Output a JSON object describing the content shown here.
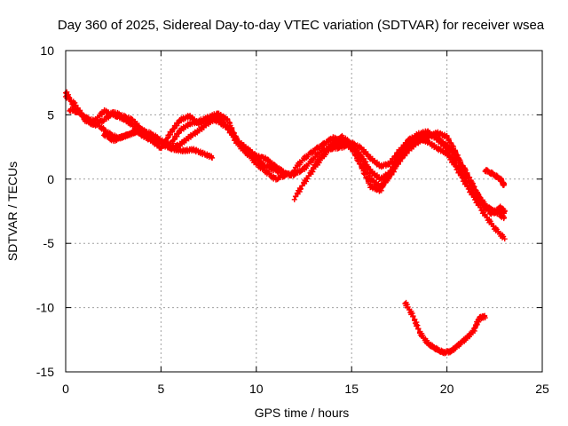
{
  "chart_data": {
    "type": "scatter",
    "title": "Day 360 of 2025, Sidereal Day-to-day VTEC variation (SDTVAR) for receiver wsea",
    "xlabel": "GPS time / hours",
    "ylabel": "SDTVAR / TECUs",
    "xlim": [
      0,
      25
    ],
    "ylim": [
      -15,
      10
    ],
    "xticks": [
      0,
      5,
      10,
      15,
      20,
      25
    ],
    "yticks": [
      -15,
      -10,
      -5,
      0,
      5,
      10
    ],
    "grid": true,
    "marker": "+",
    "color": "#ff0000",
    "series": [
      {
        "name": "track-1",
        "x": [
          0.0,
          0.5,
          1.0,
          1.5,
          2.0,
          2.5,
          3.0,
          3.5,
          4.0,
          4.5,
          5.0,
          5.5,
          6.0,
          6.5,
          7.0,
          7.5,
          8.0,
          8.5,
          9.0,
          9.5,
          10.0,
          10.5,
          11.0,
          11.5,
          12.0
        ],
        "y": [
          6.5,
          5.8,
          4.6,
          4.2,
          4.6,
          5.2,
          4.9,
          4.6,
          3.8,
          3.1,
          2.9,
          2.7,
          3.8,
          4.3,
          4.5,
          4.8,
          4.5,
          4.0,
          2.8,
          2.0,
          1.5,
          1.0,
          0.7,
          0.4,
          0.3
        ]
      },
      {
        "name": "track-2",
        "x": [
          0.0,
          0.5,
          1.0,
          1.5,
          2.0,
          2.5,
          3.0,
          3.5,
          4.0,
          4.5,
          5.0,
          5.5,
          6.0,
          6.5,
          7.0,
          7.5,
          8.0,
          8.5,
          9.0,
          9.5,
          10.0,
          10.5,
          11.0,
          11.5,
          12.0
        ],
        "y": [
          6.8,
          5.5,
          4.8,
          4.5,
          5.3,
          5.0,
          4.7,
          4.2,
          3.4,
          3.0,
          2.4,
          3.6,
          4.6,
          4.9,
          4.3,
          4.8,
          5.1,
          4.6,
          3.0,
          2.1,
          1.2,
          0.6,
          0.0,
          0.3,
          0.5
        ]
      },
      {
        "name": "track-3",
        "x": [
          0.2,
          0.7,
          1.2,
          1.7,
          2.2,
          2.7,
          3.2,
          3.7,
          4.2,
          4.7,
          5.2,
          5.7,
          6.2,
          6.7,
          7.2,
          7.7
        ],
        "y": [
          5.4,
          5.2,
          4.5,
          4.2,
          3.6,
          3.2,
          3.4,
          3.7,
          3.4,
          3.1,
          2.6,
          2.3,
          2.2,
          2.3,
          2.0,
          1.7
        ]
      },
      {
        "name": "track-4",
        "x": [
          2.0,
          2.5,
          3.0,
          3.5,
          4.0,
          4.5,
          5.0,
          5.5,
          6.0,
          6.5,
          7.0,
          7.5,
          8.0,
          8.5,
          9.0,
          9.5,
          10.0,
          10.5,
          11.0,
          11.5
        ],
        "y": [
          3.5,
          3.0,
          3.3,
          3.6,
          3.8,
          3.5,
          3.0,
          2.4,
          2.7,
          3.3,
          3.8,
          4.4,
          4.8,
          4.0,
          3.0,
          2.4,
          1.8,
          1.6,
          1.0,
          0.5
        ]
      },
      {
        "name": "track-5",
        "x": [
          12.0,
          12.5,
          13.0,
          13.5,
          14.0,
          14.5,
          15.0,
          15.5,
          16.0,
          16.5,
          17.0,
          17.5,
          18.0,
          18.5,
          19.0,
          19.5,
          20.0,
          20.5,
          21.0,
          21.5,
          22.0,
          22.5,
          23.0
        ],
        "y": [
          0.8,
          1.6,
          2.2,
          2.7,
          3.2,
          3.0,
          2.6,
          1.8,
          0.6,
          0.0,
          0.5,
          1.6,
          2.7,
          3.2,
          3.5,
          3.2,
          2.6,
          1.8,
          0.6,
          -0.9,
          -2.0,
          -2.6,
          -2.4
        ]
      },
      {
        "name": "track-6",
        "x": [
          12.0,
          12.5,
          13.0,
          13.5,
          14.0,
          14.5,
          15.0,
          15.5,
          16.0,
          16.5,
          17.0,
          17.5,
          18.0,
          18.5,
          19.0,
          19.5,
          20.0,
          20.5,
          21.0,
          21.5,
          22.0,
          22.5,
          23.0
        ],
        "y": [
          -1.5,
          -0.3,
          0.8,
          1.8,
          2.6,
          2.8,
          2.4,
          1.0,
          -0.6,
          -0.9,
          0.4,
          1.9,
          3.1,
          3.2,
          2.9,
          2.4,
          2.0,
          0.9,
          -0.4,
          -1.6,
          -2.8,
          -3.8,
          -4.6
        ]
      },
      {
        "name": "track-7",
        "x": [
          13.0,
          13.5,
          14.0,
          14.5,
          15.0,
          15.5,
          16.0,
          16.5,
          17.0,
          17.5,
          18.0,
          18.5,
          19.0,
          19.5,
          20.0,
          20.5,
          21.0,
          21.5,
          22.0,
          22.5,
          23.0
        ],
        "y": [
          1.0,
          1.8,
          2.8,
          3.3,
          2.7,
          1.6,
          0.0,
          -0.6,
          0.2,
          1.4,
          2.3,
          2.9,
          3.3,
          3.6,
          3.3,
          2.0,
          0.2,
          -1.4,
          -2.1,
          -2.5,
          -3.0
        ]
      },
      {
        "name": "track-8",
        "x": [
          12.0,
          12.5,
          13.0,
          13.5,
          14.0,
          14.5,
          15.0,
          15.5,
          16.0,
          16.5,
          17.0,
          17.5,
          18.0,
          18.5,
          19.0,
          19.5,
          20.0,
          20.5,
          21.0
        ],
        "y": [
          0.4,
          0.8,
          1.6,
          2.3,
          2.4,
          2.5,
          2.8,
          2.4,
          1.6,
          1.0,
          1.2,
          2.2,
          3.0,
          3.5,
          3.7,
          3.1,
          2.4,
          1.2,
          0.0
        ]
      },
      {
        "name": "track-9",
        "x": [
          21.3,
          21.8,
          22.3,
          22.8,
          23.0
        ],
        "y": [
          -0.3,
          -1.8,
          -2.7,
          -2.2,
          -2.6
        ]
      },
      {
        "name": "track-10",
        "x": [
          22.0,
          22.4,
          22.8,
          23.0
        ],
        "y": [
          0.7,
          0.4,
          0.0,
          -0.5
        ]
      },
      {
        "name": "track-11",
        "x": [
          17.8,
          18.2,
          18.6,
          19.0,
          19.4,
          19.8,
          20.2,
          20.6,
          21.0,
          21.4,
          21.7,
          22.0
        ],
        "y": [
          -9.6,
          -10.6,
          -12.0,
          -12.8,
          -13.2,
          -13.5,
          -13.4,
          -12.9,
          -12.4,
          -11.8,
          -10.8,
          -10.7
        ]
      }
    ]
  }
}
